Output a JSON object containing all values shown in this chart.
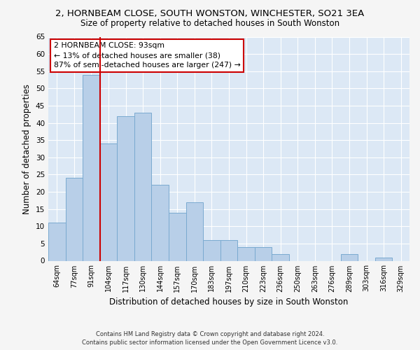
{
  "title": "2, HORNBEAM CLOSE, SOUTH WONSTON, WINCHESTER, SO21 3EA",
  "subtitle": "Size of property relative to detached houses in South Wonston",
  "xlabel": "Distribution of detached houses by size in South Wonston",
  "ylabel": "Number of detached properties",
  "categories": [
    "64sqm",
    "77sqm",
    "91sqm",
    "104sqm",
    "117sqm",
    "130sqm",
    "144sqm",
    "157sqm",
    "170sqm",
    "183sqm",
    "197sqm",
    "210sqm",
    "223sqm",
    "236sqm",
    "250sqm",
    "263sqm",
    "276sqm",
    "289sqm",
    "303sqm",
    "316sqm",
    "329sqm"
  ],
  "values": [
    11,
    24,
    54,
    34,
    42,
    43,
    22,
    14,
    17,
    6,
    6,
    4,
    4,
    2,
    0,
    0,
    0,
    2,
    0,
    1,
    0
  ],
  "bar_color": "#b8cfe8",
  "bar_edge_color": "#7aaad0",
  "background_color": "#dce8f5",
  "grid_color": "#ffffff",
  "property_line_x": 2,
  "property_line_color": "#cc0000",
  "annotation_title": "2 HORNBEAM CLOSE: 93sqm",
  "annotation_line1": "← 13% of detached houses are smaller (38)",
  "annotation_line2": "87% of semi-detached houses are larger (247) →",
  "annotation_box_color": "#ffffff",
  "annotation_box_edge": "#cc0000",
  "ylim": [
    0,
    65
  ],
  "yticks": [
    0,
    5,
    10,
    15,
    20,
    25,
    30,
    35,
    40,
    45,
    50,
    55,
    60,
    65
  ],
  "footer_line1": "Contains HM Land Registry data © Crown copyright and database right 2024.",
  "footer_line2": "Contains public sector information licensed under the Open Government Licence v3.0.",
  "title_fontsize": 9.5,
  "subtitle_fontsize": 8.5,
  "fig_facecolor": "#f5f5f5"
}
